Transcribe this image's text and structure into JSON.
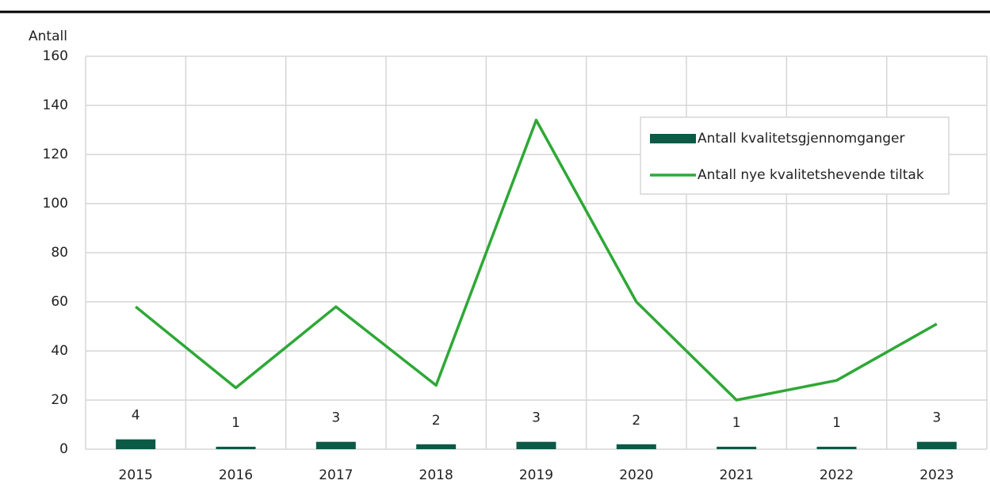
{
  "chart_data": {
    "type": "bar",
    "y_label": "Antall",
    "categories": [
      "2015",
      "2016",
      "2017",
      "2018",
      "2019",
      "2020",
      "2021",
      "2022",
      "2023"
    ],
    "series": [
      {
        "name": "Antall kvalitetsgjennomganger",
        "type": "bar",
        "color": "#0b5a46",
        "values": [
          4,
          1,
          3,
          2,
          3,
          2,
          1,
          1,
          3
        ]
      },
      {
        "name": "Antall nye kvalitetshevende tiltak",
        "type": "line",
        "color": "#2ea836",
        "values": [
          58,
          25,
          58,
          26,
          134,
          60,
          20,
          28,
          51
        ]
      }
    ],
    "ylim": [
      0,
      160
    ],
    "yticks": [
      0,
      20,
      40,
      60,
      80,
      100,
      120,
      140,
      160
    ],
    "grid": true,
    "legend": "upper right"
  }
}
